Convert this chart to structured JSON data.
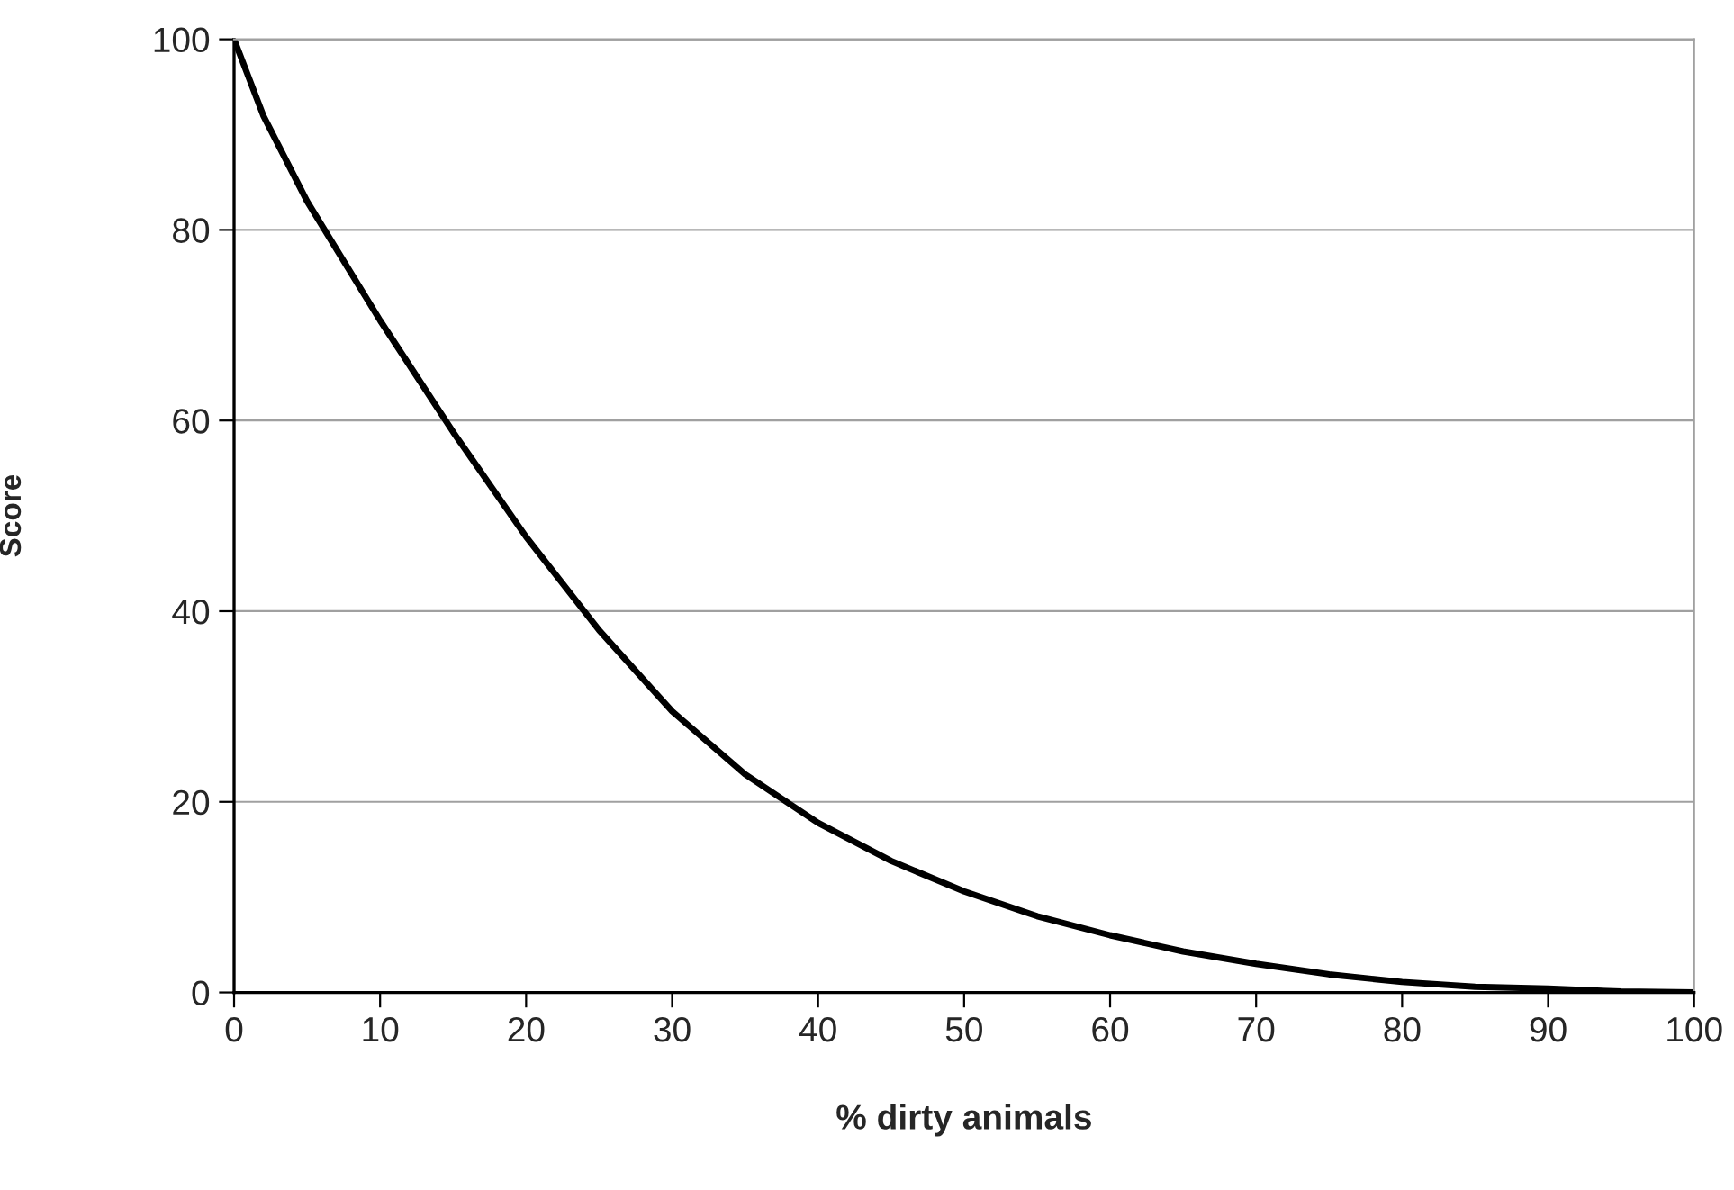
{
  "chart_data": {
    "type": "line",
    "xlabel": "% dirty animals",
    "ylabel": "Score",
    "series": [
      {
        "color": "#000000",
        "x": [
          0,
          2,
          5,
          10,
          15,
          20,
          25,
          30,
          35,
          40,
          45,
          50,
          55,
          60,
          65,
          70,
          75,
          80,
          85,
          90,
          95,
          100
        ],
        "values": [
          100,
          92,
          83,
          70.5,
          58.8,
          47.8,
          38,
          29.5,
          22.9,
          17.8,
          13.8,
          10.6,
          8,
          6,
          4.3,
          3,
          1.9,
          1.1,
          0.6,
          0.4,
          0.1,
          0
        ]
      }
    ],
    "xlim": [
      0,
      100
    ],
    "ylim": [
      0,
      100
    ],
    "xticks": [
      0,
      10,
      20,
      30,
      40,
      50,
      60,
      70,
      80,
      90,
      100
    ],
    "yticks": [
      0,
      20,
      40,
      60,
      80,
      100
    ],
    "grid": "y",
    "marker": "none",
    "line_style": "solid"
  }
}
